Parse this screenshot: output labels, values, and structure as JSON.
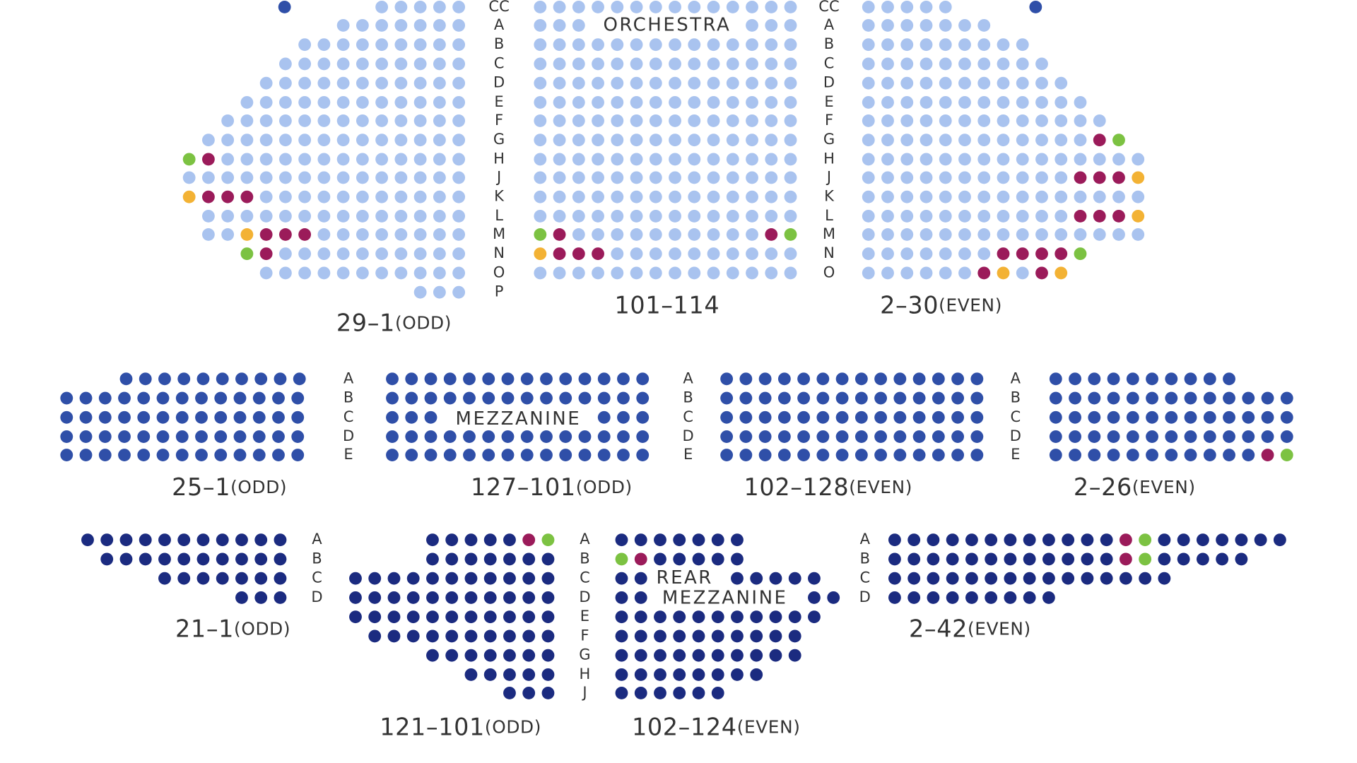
{
  "orchestra": {
    "title": "ORCHESTRA",
    "sections": [
      {
        "range": "29–1",
        "parity": "(ODD)"
      },
      {
        "range": "101–114"
      },
      {
        "range": "2–30",
        "parity": "(EVEN)"
      }
    ],
    "row_columns": [
      [
        "CC",
        "A",
        "B",
        "C",
        "D",
        "E",
        "F",
        "G",
        "H",
        "J",
        "K",
        "L",
        "M",
        "N",
        "O",
        "P"
      ],
      [
        "CC",
        "A",
        "B",
        "C",
        "D",
        "E",
        "F",
        "G",
        "H",
        "J",
        "K",
        "L",
        "M",
        "N",
        "O"
      ]
    ]
  },
  "mezzanine": {
    "title": "MEZZANINE",
    "sections": [
      {
        "range": "25–1",
        "parity": "(ODD)"
      },
      {
        "range": "127–101",
        "parity": "(ODD)"
      },
      {
        "range": "102–128",
        "parity": "(EVEN)"
      },
      {
        "range": "2–26",
        "parity": "(EVEN)"
      }
    ],
    "row_columns": [
      [
        "A",
        "B",
        "C",
        "D",
        "E"
      ],
      [
        "A",
        "B",
        "C",
        "D",
        "E"
      ],
      [
        "A",
        "B",
        "C",
        "D",
        "E"
      ]
    ]
  },
  "rear_mezzanine": {
    "title_lines": [
      "REAR",
      "MEZZANINE"
    ],
    "sections": [
      {
        "range": "21–1",
        "parity": "(ODD)"
      },
      {
        "range": "121–101",
        "parity": "(ODD)"
      },
      {
        "range": "102–124",
        "parity": "(EVEN)"
      },
      {
        "range": "2–42",
        "parity": "(EVEN)"
      }
    ],
    "row_columns": [
      [
        "A",
        "B",
        "C",
        "D"
      ],
      [
        "A",
        "B",
        "C",
        "D",
        "E",
        "F",
        "G",
        "H",
        "J"
      ],
      [
        "A",
        "B",
        "C",
        "D"
      ]
    ]
  }
}
